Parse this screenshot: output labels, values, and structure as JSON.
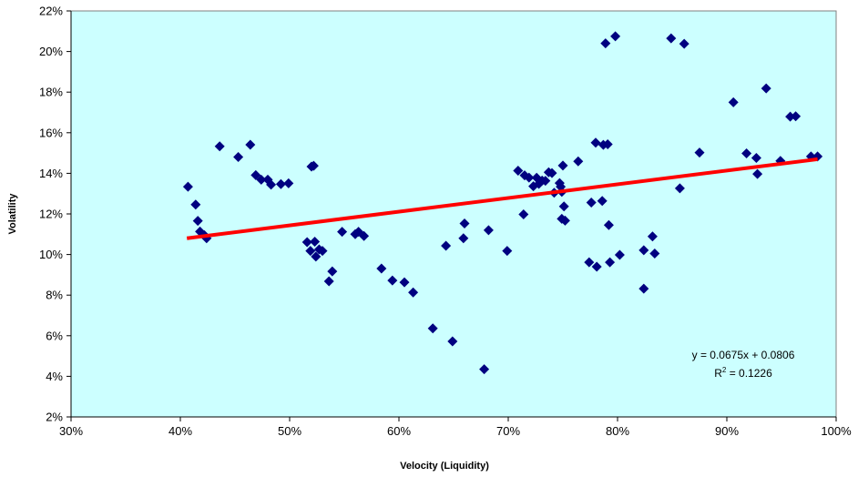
{
  "chart_data": {
    "type": "scatter",
    "xlabel": "Velocity (Liquidity)",
    "ylabel": "Volatility",
    "xlim": [
      0.3,
      1.0
    ],
    "ylim": [
      0.02,
      0.22
    ],
    "x_ticks": [
      0.3,
      0.4,
      0.5,
      0.6,
      0.7,
      0.8,
      0.9,
      1.0
    ],
    "x_tick_labels": [
      "30%",
      "40%",
      "50%",
      "60%",
      "70%",
      "80%",
      "90%",
      "100%"
    ],
    "y_ticks": [
      0.02,
      0.04,
      0.06,
      0.08,
      0.1,
      0.12,
      0.14,
      0.16,
      0.18,
      0.2,
      0.22
    ],
    "y_tick_labels": [
      "2%",
      "4%",
      "6%",
      "8%",
      "10%",
      "12%",
      "14%",
      "16%",
      "18%",
      "20%",
      "22%"
    ],
    "grid": false,
    "plot_background": "#ccffff",
    "marker_color": "#000080",
    "trendline_color": "#ff0000",
    "trendline": {
      "slope": 0.0675,
      "intercept": 0.0806,
      "x_range": [
        0.406,
        0.983
      ],
      "equation_label": "y = 0.0675x + 0.0806",
      "r2_prefix": "R",
      "r2_superscript": "2",
      "r2_suffix": " = 0.1226"
    },
    "points": [
      [
        0.407,
        0.1334
      ],
      [
        0.414,
        0.1246
      ],
      [
        0.416,
        0.1166
      ],
      [
        0.418,
        0.1113
      ],
      [
        0.422,
        0.1095
      ],
      [
        0.424,
        0.108
      ],
      [
        0.436,
        0.1533
      ],
      [
        0.453,
        0.148
      ],
      [
        0.464,
        0.1541
      ],
      [
        0.469,
        0.1391
      ],
      [
        0.474,
        0.1369
      ],
      [
        0.48,
        0.1369
      ],
      [
        0.483,
        0.1344
      ],
      [
        0.492,
        0.1347
      ],
      [
        0.499,
        0.1351
      ],
      [
        0.516,
        0.1061
      ],
      [
        0.519,
        0.1018
      ],
      [
        0.52,
        0.1433
      ],
      [
        0.522,
        0.1437
      ],
      [
        0.523,
        0.1063
      ],
      [
        0.524,
        0.099
      ],
      [
        0.527,
        0.1025
      ],
      [
        0.53,
        0.1018
      ],
      [
        0.536,
        0.0868
      ],
      [
        0.539,
        0.0917
      ],
      [
        0.548,
        0.1112
      ],
      [
        0.56,
        0.11
      ],
      [
        0.563,
        0.1112
      ],
      [
        0.568,
        0.1091
      ],
      [
        0.584,
        0.0931
      ],
      [
        0.594,
        0.0872
      ],
      [
        0.605,
        0.0863
      ],
      [
        0.613,
        0.0813
      ],
      [
        0.631,
        0.0636
      ],
      [
        0.643,
        0.1043
      ],
      [
        0.649,
        0.0572
      ],
      [
        0.659,
        0.108
      ],
      [
        0.66,
        0.1153
      ],
      [
        0.678,
        0.0435
      ],
      [
        0.682,
        0.112
      ],
      [
        0.699,
        0.1018
      ],
      [
        0.709,
        0.1413
      ],
      [
        0.714,
        0.1198
      ],
      [
        0.715,
        0.139
      ],
      [
        0.719,
        0.1379
      ],
      [
        0.723,
        0.1336
      ],
      [
        0.726,
        0.1378
      ],
      [
        0.728,
        0.1348
      ],
      [
        0.731,
        0.1364
      ],
      [
        0.734,
        0.1363
      ],
      [
        0.737,
        0.1405
      ],
      [
        0.74,
        0.1401
      ],
      [
        0.742,
        0.1304
      ],
      [
        0.747,
        0.1352
      ],
      [
        0.748,
        0.1334
      ],
      [
        0.749,
        0.1309
      ],
      [
        0.749,
        0.1176
      ],
      [
        0.75,
        0.1438
      ],
      [
        0.751,
        0.1237
      ],
      [
        0.752,
        0.1167
      ],
      [
        0.764,
        0.1459
      ],
      [
        0.774,
        0.0962
      ],
      [
        0.776,
        0.1256
      ],
      [
        0.78,
        0.1551
      ],
      [
        0.781,
        0.094
      ],
      [
        0.786,
        0.1264
      ],
      [
        0.787,
        0.154
      ],
      [
        0.789,
        0.204
      ],
      [
        0.791,
        0.1543
      ],
      [
        0.792,
        0.1145
      ],
      [
        0.793,
        0.0962
      ],
      [
        0.798,
        0.2075
      ],
      [
        0.802,
        0.0998
      ],
      [
        0.824,
        0.1021
      ],
      [
        0.824,
        0.0832
      ],
      [
        0.832,
        0.1089
      ],
      [
        0.834,
        0.1005
      ],
      [
        0.849,
        0.2065
      ],
      [
        0.857,
        0.1326
      ],
      [
        0.861,
        0.2038
      ],
      [
        0.875,
        0.1502
      ],
      [
        0.906,
        0.175
      ],
      [
        0.918,
        0.1498
      ],
      [
        0.927,
        0.1476
      ],
      [
        0.928,
        0.1397
      ],
      [
        0.936,
        0.1818
      ],
      [
        0.949,
        0.1461
      ],
      [
        0.958,
        0.1679
      ],
      [
        0.963,
        0.1681
      ],
      [
        0.977,
        0.1483
      ],
      [
        0.983,
        0.1483
      ]
    ]
  }
}
